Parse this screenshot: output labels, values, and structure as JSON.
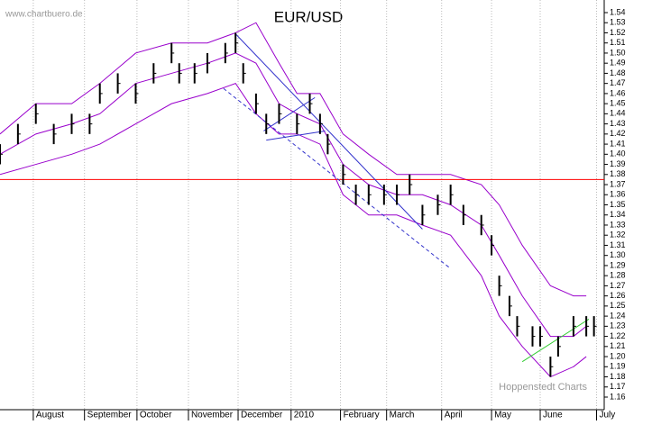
{
  "chart_data": {
    "type": "ohlc",
    "title": "EUR/USD",
    "watermark": "www.chartbuero.de",
    "source": "Hoppenstedt Charts",
    "xlim": [
      0,
      236
    ],
    "xticks": [
      {
        "value": 13,
        "label": "August"
      },
      {
        "value": 33,
        "label": "September"
      },
      {
        "value": 53.5,
        "label": "October"
      },
      {
        "value": 73.6,
        "label": "November"
      },
      {
        "value": 93,
        "label": "December"
      },
      {
        "value": 113.7,
        "label": "2010"
      },
      {
        "value": 133,
        "label": "February"
      },
      {
        "value": 151,
        "label": "March"
      },
      {
        "value": 172.5,
        "label": "April"
      },
      {
        "value": 192,
        "label": "May"
      },
      {
        "value": 211,
        "label": "June"
      },
      {
        "value": 233,
        "label": "July"
      }
    ],
    "ylim": [
      1.16,
      1.54
    ],
    "yticks": [
      1.16,
      1.17,
      1.18,
      1.19,
      {
        "value": 1.2,
        "label": "1.20"
      },
      1.21,
      1.22,
      1.23,
      1.24,
      1.25,
      1.26,
      1.27,
      1.28,
      1.29,
      {
        "value": 1.3,
        "label": "1.30"
      },
      1.31,
      1.32,
      1.33,
      1.34,
      1.35,
      1.36,
      1.37,
      1.38,
      1.39,
      {
        "value": 1.4,
        "label": "1.40"
      },
      1.41,
      1.42,
      1.43,
      1.44,
      1.45,
      1.46,
      1.47,
      1.48,
      1.49,
      {
        "value": 1.5,
        "label": "1.50"
      },
      1.51,
      1.52,
      1.53,
      1.54
    ],
    "grid": true,
    "bars": {
      "color": "#000000",
      "x": [
        0,
        7,
        14,
        21,
        28,
        35,
        39,
        46,
        53,
        60,
        67,
        70,
        76,
        81,
        88,
        92,
        95,
        100,
        104,
        109,
        116,
        121,
        125,
        128,
        134,
        139,
        144,
        150,
        155,
        160,
        165,
        171,
        176,
        181,
        188,
        192,
        195,
        199,
        202,
        208,
        211,
        215,
        218,
        224,
        229,
        232
      ],
      "low": [
        1.39,
        1.41,
        1.43,
        1.41,
        1.42,
        1.42,
        1.45,
        1.46,
        1.45,
        1.47,
        1.49,
        1.47,
        1.47,
        1.48,
        1.49,
        1.5,
        1.47,
        1.44,
        1.42,
        1.43,
        1.42,
        1.44,
        1.42,
        1.4,
        1.37,
        1.35,
        1.35,
        1.35,
        1.35,
        1.36,
        1.33,
        1.34,
        1.35,
        1.33,
        1.32,
        1.3,
        1.26,
        1.24,
        1.22,
        1.21,
        1.21,
        1.18,
        1.2,
        1.22,
        1.22,
        1.22
      ],
      "high": [
        1.41,
        1.43,
        1.45,
        1.43,
        1.44,
        1.44,
        1.47,
        1.48,
        1.47,
        1.49,
        1.51,
        1.49,
        1.49,
        1.5,
        1.51,
        1.52,
        1.49,
        1.46,
        1.44,
        1.45,
        1.44,
        1.46,
        1.44,
        1.42,
        1.39,
        1.37,
        1.37,
        1.37,
        1.37,
        1.38,
        1.35,
        1.36,
        1.37,
        1.35,
        1.34,
        1.32,
        1.28,
        1.26,
        1.24,
        1.23,
        1.23,
        1.2,
        1.22,
        1.24,
        1.24,
        1.24
      ],
      "close": [
        1.4,
        1.42,
        1.44,
        1.42,
        1.43,
        1.43,
        1.46,
        1.47,
        1.46,
        1.48,
        1.5,
        1.48,
        1.48,
        1.49,
        1.5,
        1.51,
        1.48,
        1.45,
        1.43,
        1.44,
        1.43,
        1.45,
        1.43,
        1.41,
        1.38,
        1.36,
        1.36,
        1.36,
        1.36,
        1.37,
        1.34,
        1.35,
        1.36,
        1.34,
        1.33,
        1.31,
        1.27,
        1.25,
        1.23,
        1.22,
        1.22,
        1.19,
        1.21,
        1.23,
        1.23,
        1.23
      ]
    },
    "bands": {
      "color": "#9900cc",
      "x": [
        0,
        14,
        28,
        39,
        53,
        67,
        81,
        92,
        100,
        109,
        116,
        125,
        134,
        144,
        155,
        165,
        176,
        188,
        195,
        204,
        215,
        224,
        229
      ],
      "upper": [
        1.42,
        1.45,
        1.45,
        1.47,
        1.5,
        1.51,
        1.51,
        1.52,
        1.53,
        1.49,
        1.46,
        1.46,
        1.42,
        1.4,
        1.38,
        1.38,
        1.38,
        1.37,
        1.35,
        1.31,
        1.27,
        1.26,
        1.26
      ],
      "middle": [
        1.4,
        1.42,
        1.43,
        1.44,
        1.47,
        1.48,
        1.49,
        1.5,
        1.49,
        1.45,
        1.44,
        1.43,
        1.39,
        1.37,
        1.36,
        1.36,
        1.35,
        1.33,
        1.3,
        1.26,
        1.22,
        1.22,
        1.23
      ],
      "lower": [
        1.38,
        1.39,
        1.4,
        1.41,
        1.43,
        1.45,
        1.46,
        1.47,
        1.44,
        1.42,
        1.42,
        1.41,
        1.36,
        1.34,
        1.34,
        1.33,
        1.32,
        1.28,
        1.24,
        1.21,
        1.18,
        1.19,
        1.2
      ]
    },
    "lines": [
      {
        "x": [
          0,
          236
        ],
        "y": [
          1.375,
          1.375
        ],
        "color": "#ff0000",
        "dash": false
      },
      {
        "x": [
          92,
          165
        ],
        "y": [
          1.519,
          1.326
        ],
        "color": "#3333cc",
        "dash": false
      },
      {
        "x": [
          87.3,
          176
        ],
        "y": [
          1.465,
          1.287
        ],
        "color": "#3333cc",
        "dash": true
      },
      {
        "x": [
          103,
          123
        ],
        "y": [
          1.423,
          1.456
        ],
        "color": "#3333cc",
        "dash": false
      },
      {
        "x": [
          104,
          127
        ],
        "y": [
          1.414,
          1.423
        ],
        "color": "#3333cc",
        "dash": false
      },
      {
        "x": [
          204,
          230
        ],
        "y": [
          1.195,
          1.237
        ],
        "color": "#33cc33",
        "dash": false
      }
    ]
  }
}
